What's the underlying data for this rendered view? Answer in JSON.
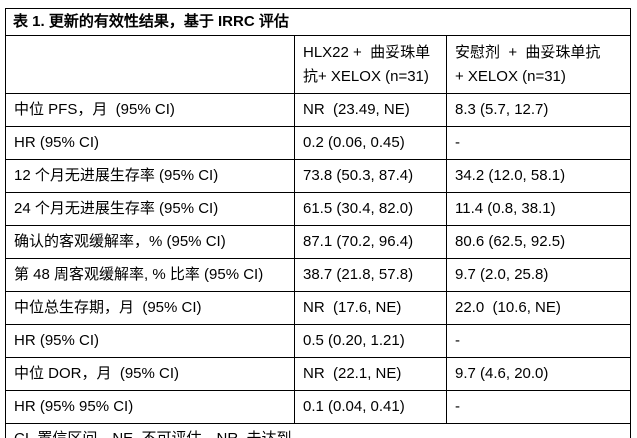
{
  "title": "表 1. 更新的有效性结果，基于 IRRC 评估",
  "table": {
    "header": {
      "label": "",
      "col1": "HLX22 +  曲妥珠单\n抗+ XELOX (n=31)",
      "col2": "安慰剂  +  曲妥珠单抗\n+ XELOX (n=31)"
    },
    "rows": [
      {
        "label": "中位 PFS，月  (95% CI)",
        "col1": "NR  (23.49, NE)",
        "col2": "8.3 (5.7, 12.7)"
      },
      {
        "label": "HR (95% CI)",
        "col1": "0.2 (0.06, 0.45)",
        "col2": "-"
      },
      {
        "label": "12 个月无进展生存率 (95% CI)",
        "col1": "73.8 (50.3, 87.4)",
        "col2": "34.2 (12.0, 58.1)"
      },
      {
        "label": "24 个月无进展生存率 (95% CI)",
        "col1": "61.5 (30.4, 82.0)",
        "col2": "11.4 (0.8, 38.1)"
      },
      {
        "label": "确认的客观缓解率，% (95% CI)",
        "col1": "87.1 (70.2, 96.4)",
        "col2": "80.6 (62.5, 92.5)"
      },
      {
        "label": "第 48 周客观缓解率, % 比率 (95% CI)",
        "col1": "38.7 (21.8, 57.8)",
        "col2": "9.7 (2.0, 25.8)"
      },
      {
        "label": "中位总生存期，月  (95% CI)",
        "col1": "NR  (17.6, NE)",
        "col2": "22.0  (10.6, NE)"
      },
      {
        "label": "HR (95% CI)",
        "col1": "0.5 (0.20, 1.21)",
        "col2": "-"
      },
      {
        "label": "中位 DOR，月  (95% CI)",
        "col1": "NR  (22.1, NE)",
        "col2": "9.7 (4.6, 20.0)"
      },
      {
        "label": "HR (95% 95% CI)",
        "col1": "0.1 (0.04, 0.41)",
        "col2": "-"
      }
    ],
    "footnote": "CI, 置信区间。NE, 不可评估。NR, 未达到。"
  }
}
